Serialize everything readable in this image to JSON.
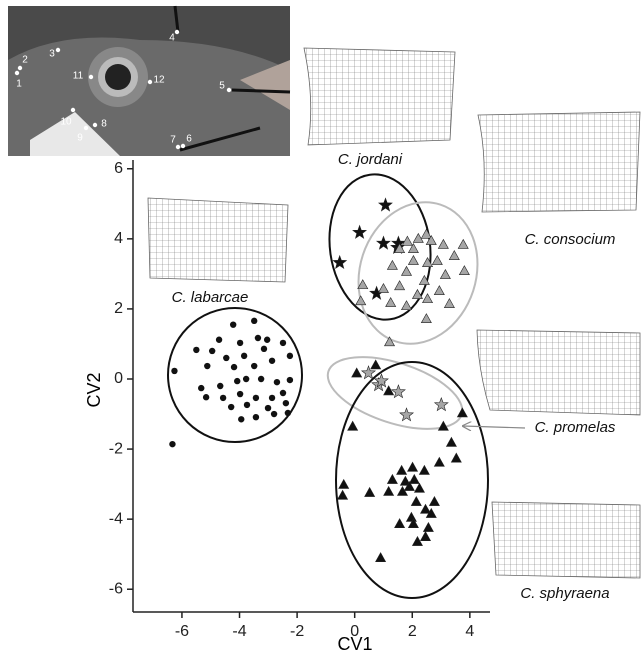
{
  "photo": {
    "landmarks": [
      "1",
      "2",
      "3",
      "4",
      "5",
      "6",
      "7",
      "8",
      "9",
      "10",
      "11",
      "12"
    ]
  },
  "chart_data": {
    "type": "scatter",
    "x_label": "CV1",
    "y_label": "CV2",
    "xlim": [
      -7.7,
      4.7
    ],
    "ylim": [
      -6.65,
      6.25
    ],
    "xticks": [
      -6,
      -4,
      -2,
      0,
      2,
      4
    ],
    "yticks": [
      -6,
      -4,
      -2,
      0,
      2,
      4,
      6
    ],
    "series": [
      {
        "name": "C. jordani",
        "marker": "star",
        "color": "#111111",
        "x": [
          1.07,
          0.17,
          -0.52,
          1.0,
          1.49,
          1.52,
          0.76
        ],
        "y": [
          4.96,
          4.18,
          3.32,
          3.87,
          3.75,
          3.87,
          2.44
        ]
      },
      {
        "name": "C. consocium",
        "marker": "triangle",
        "color": "#a6a6a6",
        "x": [
          2.49,
          2.66,
          2.21,
          3.08,
          3.77,
          1.83,
          1.56,
          2.04,
          3.46,
          2.87,
          2.04,
          2.53,
          1.31,
          1.8,
          3.15,
          3.81,
          2.42,
          0.28,
          1.56,
          1.0,
          2.94,
          2.18,
          0.21,
          2.53,
          1.25,
          1.8,
          3.29,
          2.49,
          1.21
        ],
        "y": [
          4.13,
          3.95,
          4.01,
          3.84,
          3.84,
          3.93,
          3.72,
          3.72,
          3.52,
          3.38,
          3.38,
          3.32,
          3.24,
          3.07,
          2.98,
          3.09,
          2.81,
          2.69,
          2.66,
          2.58,
          2.52,
          2.41,
          2.23,
          2.29,
          2.18,
          2.09,
          2.15,
          1.72,
          1.06
        ]
      },
      {
        "name": "C. labarcae",
        "marker": "circle",
        "color": "#111111",
        "x": [
          -6.26,
          -5.5,
          -4.95,
          -4.71,
          -4.22,
          -3.49,
          -3.98,
          -3.36,
          -3.04,
          -2.49,
          -3.15,
          -3.84,
          -4.46,
          -5.12,
          -4.19,
          -3.49,
          -2.87,
          -2.25,
          -5.33,
          -4.67,
          -4.08,
          -3.77,
          -3.25,
          -2.7,
          -2.25,
          -4.57,
          -3.98,
          -3.43,
          -2.87,
          -2.49,
          -4.29,
          -3.74,
          -3.01,
          -2.39,
          -5.16,
          -3.43,
          -2.8,
          -2.32,
          -3.94,
          -6.33
        ],
        "y": [
          0.23,
          0.83,
          0.8,
          1.12,
          1.55,
          1.66,
          1.03,
          1.17,
          1.12,
          1.03,
          0.86,
          0.66,
          0.6,
          0.37,
          0.34,
          0.37,
          0.52,
          0.66,
          -0.26,
          -0.2,
          -0.06,
          0,
          0,
          -0.09,
          -0.03,
          -0.54,
          -0.43,
          -0.54,
          -0.54,
          -0.4,
          -0.8,
          -0.74,
          -0.83,
          -0.69,
          -0.52,
          -1.09,
          -1.0,
          -0.97,
          -1.15,
          -1.86
        ]
      },
      {
        "name": "C. promelas",
        "marker": "star",
        "color": "#a6a6a6",
        "x": [
          0.48,
          0.83,
          1.52,
          1.8,
          3.01,
          0.93
        ],
        "y": [
          0.17,
          -0.17,
          -0.37,
          -1.03,
          -0.74,
          -0.06
        ]
      },
      {
        "name": "C. sphyraena",
        "marker": "triangle",
        "color": "#111111",
        "x": [
          0.73,
          0.07,
          -0.07,
          1.18,
          3.74,
          3.08,
          3.36,
          3.53,
          2.94,
          1.63,
          2.01,
          2.42,
          1.31,
          1.76,
          2.07,
          1.9,
          2.25,
          -0.38,
          0.52,
          1.18,
          1.66,
          -0.42,
          2.77,
          2.14,
          2.46,
          1.97,
          2.66,
          1.56,
          2.04,
          2.56,
          2.46,
          2.18,
          0.9
        ],
        "y": [
          0.4,
          0.17,
          -1.35,
          -0.34,
          -0.97,
          -1.35,
          -1.81,
          -2.26,
          -2.38,
          -2.61,
          -2.52,
          -2.61,
          -2.87,
          -2.92,
          -2.87,
          -3.07,
          -3.12,
          -3.01,
          -3.24,
          -3.21,
          -3.21,
          -3.32,
          -3.5,
          -3.5,
          -3.72,
          -3.95,
          -3.84,
          -4.13,
          -4.13,
          -4.24,
          -4.5,
          -4.64,
          -5.1
        ]
      }
    ]
  }
}
